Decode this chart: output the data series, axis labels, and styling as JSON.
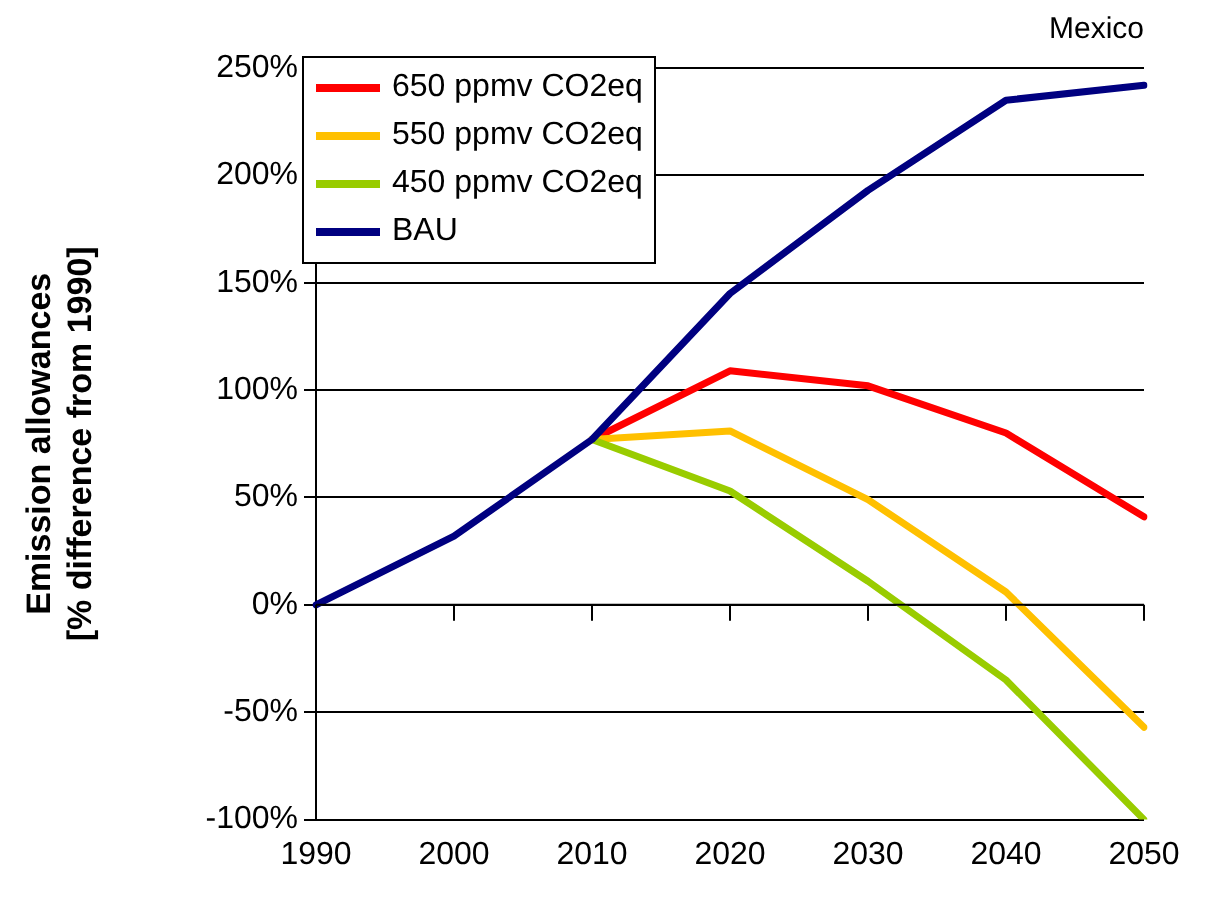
{
  "chart_data": {
    "type": "line",
    "title": "Mexico",
    "ylabel": "Emission allowances\n[% difference from 1990]",
    "categories": [
      "1990",
      "2000",
      "2010",
      "2020",
      "2030",
      "2040",
      "2050"
    ],
    "series": [
      {
        "name": "650 ppmv CO2eq",
        "color": "#ff0000",
        "values": [
          null,
          null,
          77,
          109,
          102,
          80,
          41
        ]
      },
      {
        "name": "550 ppmv CO2eq",
        "color": "#ffc000",
        "values": [
          null,
          null,
          77,
          81,
          49,
          6,
          -57
        ]
      },
      {
        "name": "450 ppmv CO2eq",
        "color": "#99cc00",
        "values": [
          null,
          null,
          77,
          53,
          11,
          -35,
          -100
        ]
      },
      {
        "name": "BAU",
        "color": "#000080",
        "values": [
          0,
          32,
          77,
          145,
          193,
          235,
          242
        ]
      }
    ],
    "ylim": [
      -100,
      250
    ],
    "yticks": [
      {
        "value": -100,
        "label": "-100%"
      },
      {
        "value": -50,
        "label": "-50%"
      },
      {
        "value": 0,
        "label": "0%"
      },
      {
        "value": 50,
        "label": "50%"
      },
      {
        "value": 100,
        "label": "100%"
      },
      {
        "value": 150,
        "label": "150%"
      },
      {
        "value": 200,
        "label": "200%"
      },
      {
        "value": 250,
        "label": "250%"
      }
    ],
    "grid": "y",
    "legend": "top left",
    "marker": "none",
    "line_style": "solid"
  }
}
